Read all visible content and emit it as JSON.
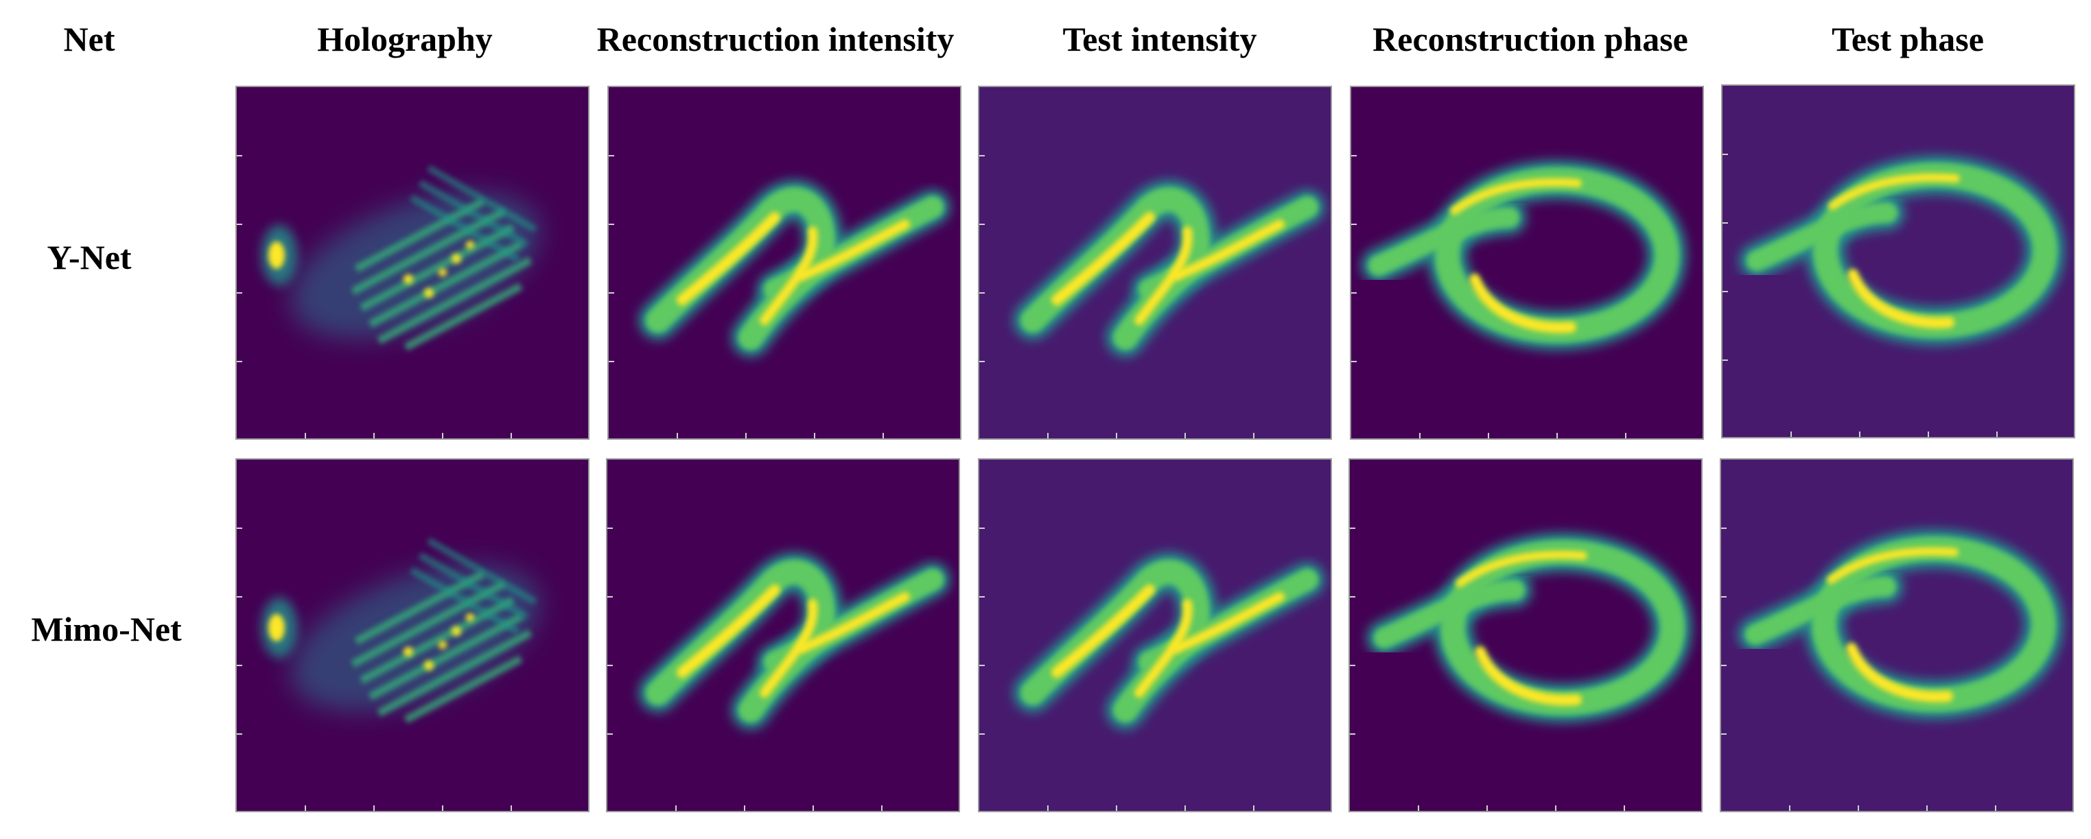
{
  "header": {
    "net": "Net",
    "holography": "Holography",
    "recon_intensity": "Reconstruction intensity",
    "test_intensity": "Test intensity",
    "recon_phase": "Reconstruction phase",
    "test_phase": "Test phase"
  },
  "rows": [
    {
      "label": "Y-Net"
    },
    {
      "label": "Mimo-Net"
    }
  ],
  "colors": {
    "background_dark": "#440154",
    "background_test": "#471a6e",
    "viridis_mid": "#21918c",
    "viridis_green": "#5ec962",
    "viridis_yellow": "#fde725"
  }
}
